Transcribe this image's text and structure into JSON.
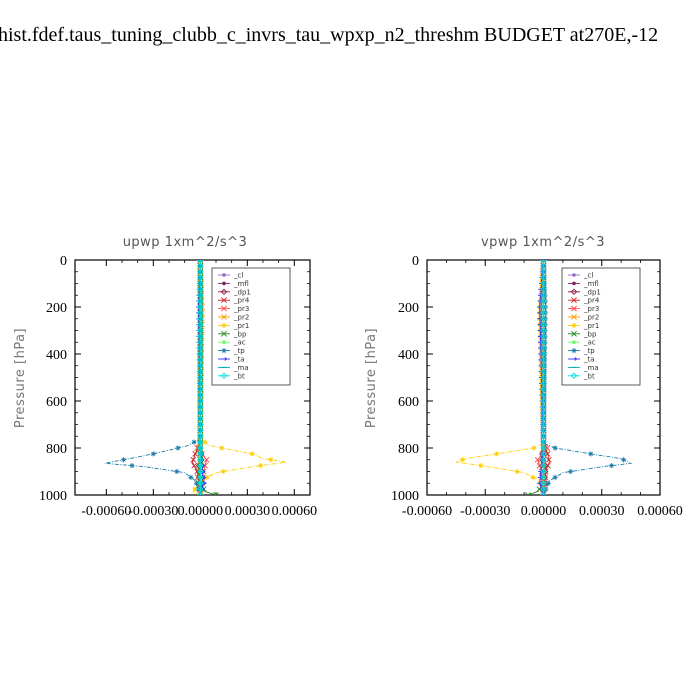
{
  "figure_title": "hist.fdef.taus_tuning_clubb_c_invrs_tau_wpxp_n2_threshm  BUDGET at270E,-12",
  "chart_data": [
    {
      "type": "line",
      "title": "upwp   1xm^2/s^3",
      "ylabel": "Pressure [hPa]",
      "xlim": [
        -0.0008,
        0.0007
      ],
      "ylim": [
        1000,
        0
      ],
      "y_ticks": [
        0,
        200,
        400,
        600,
        800,
        1000
      ],
      "x_ticks": [
        -0.0006,
        -0.0003,
        0.0,
        0.0003,
        0.0006
      ],
      "x_tick_labels": [
        "-0.00060",
        "-0.00030",
        "0.00000",
        "0.00030",
        "0.00060"
      ],
      "legend": "top-right",
      "series": [
        {
          "name": "_cl",
          "color": "#9966cc",
          "marker": "dot",
          "values": [
            [
              0,
              0
            ],
            [
              0,
              850
            ],
            [
              0,
              1000
            ]
          ]
        },
        {
          "name": "_mfl",
          "color": "#7a1f5c",
          "marker": "dot",
          "values": [
            [
              0,
              0
            ],
            [
              0,
              850
            ],
            [
              0,
              1000
            ]
          ]
        },
        {
          "name": "_dp1",
          "color": "#8b1a3a",
          "marker": "diamond",
          "values": [
            [
              0,
              0
            ],
            [
              0,
              800
            ],
            [
              1e-05,
              840
            ],
            [
              -1e-05,
              880
            ],
            [
              0,
              1000
            ]
          ]
        },
        {
          "name": "_pr4",
          "color": "#cc2222",
          "marker": "x",
          "values": [
            [
              0,
              0
            ],
            [
              0,
              790
            ],
            [
              -3e-05,
              820
            ],
            [
              -5e-05,
              860
            ],
            [
              -2e-05,
              900
            ],
            [
              0,
              1000
            ]
          ]
        },
        {
          "name": "_pr3",
          "color": "#ff4444",
          "marker": "x",
          "values": [
            [
              0,
              0
            ],
            [
              0,
              780
            ],
            [
              -2e-05,
              800
            ],
            [
              4e-05,
              850
            ],
            [
              2e-05,
              900
            ],
            [
              0,
              1000
            ]
          ]
        },
        {
          "name": "_pr2",
          "color": "#ff9900",
          "marker": "x",
          "values": [
            [
              0,
              0
            ],
            [
              1e-05,
              200
            ],
            [
              0,
              780
            ],
            [
              0,
              1000
            ]
          ]
        },
        {
          "name": "_pr1",
          "color": "#ffcc00",
          "marker": "star",
          "values": [
            [
              0,
              0
            ],
            [
              0,
              760
            ],
            [
              6e-05,
              790
            ],
            [
              0.00033,
              825
            ],
            [
              0.0004,
              845
            ],
            [
              0.00055,
              860
            ],
            [
              0.00033,
              880
            ],
            [
              0.0001,
              905
            ],
            [
              0,
              940
            ],
            [
              -5e-05,
              990
            ],
            [
              0,
              1000
            ]
          ]
        },
        {
          "name": "_bp",
          "color": "#228b22",
          "marker": "x",
          "values": [
            [
              0,
              0
            ],
            [
              0,
              950
            ],
            [
              3e-05,
              985
            ],
            [
              0.0001,
              1000
            ]
          ]
        },
        {
          "name": "_ac",
          "color": "#66ff66",
          "marker": "dot",
          "values": [
            [
              0,
              0
            ],
            [
              0,
              1000
            ]
          ]
        },
        {
          "name": "_tp",
          "color": "#1a7aaa",
          "marker": "star",
          "values": [
            [
              0,
              0
            ],
            [
              0,
              760
            ],
            [
              -8e-05,
              790
            ],
            [
              -0.0003,
              825
            ],
            [
              -0.00045,
              845
            ],
            [
              -0.00061,
              865
            ],
            [
              -0.00035,
              880
            ],
            [
              -0.0001,
              905
            ],
            [
              -3e-05,
              940
            ],
            [
              0,
              1000
            ]
          ]
        },
        {
          "name": "_ta",
          "color": "#3333ff",
          "marker": "arrow",
          "values": [
            [
              0,
              0
            ],
            [
              -1e-05,
              200
            ],
            [
              0,
              800
            ],
            [
              2e-05,
              950
            ],
            [
              0,
              1000
            ]
          ]
        },
        {
          "name": "_ma",
          "color": "#00aaaa",
          "marker": "dash",
          "values": [
            [
              0,
              0
            ],
            [
              0,
              1000
            ]
          ]
        },
        {
          "name": "_bt",
          "color": "#00dddd",
          "marker": "diamond",
          "values": [
            [
              0,
              0
            ],
            [
              0,
              1000
            ]
          ]
        }
      ]
    },
    {
      "type": "line",
      "title": "vpwp   1xm^2/s^3",
      "ylabel": "Pressure [hPa]",
      "xlim": [
        -0.0006,
        0.0006
      ],
      "ylim": [
        1000,
        0
      ],
      "y_ticks": [
        0,
        200,
        400,
        600,
        800,
        1000
      ],
      "x_ticks": [
        -0.0006,
        -0.0003,
        0.0,
        0.0003,
        0.0006
      ],
      "x_tick_labels": [
        "-0.00060",
        "-0.00030",
        "0.00000",
        "0.00030",
        "0.00060"
      ],
      "legend": "top-right",
      "series": [
        {
          "name": "_cl",
          "color": "#9966cc",
          "marker": "dot",
          "values": [
            [
              0,
              0
            ],
            [
              0,
              850
            ],
            [
              0,
              1000
            ]
          ]
        },
        {
          "name": "_mfl",
          "color": "#7a1f5c",
          "marker": "dot",
          "values": [
            [
              0,
              0
            ],
            [
              0,
              850
            ],
            [
              0,
              1000
            ]
          ]
        },
        {
          "name": "_dp1",
          "color": "#8b1a3a",
          "marker": "diamond",
          "values": [
            [
              0,
              0
            ],
            [
              0,
              800
            ],
            [
              -1e-05,
              840
            ],
            [
              1e-05,
              880
            ],
            [
              0,
              1000
            ]
          ]
        },
        {
          "name": "_pr4",
          "color": "#cc2222",
          "marker": "x",
          "values": [
            [
              0,
              0
            ],
            [
              0,
              790
            ],
            [
              2e-05,
              820
            ],
            [
              3e-05,
              860
            ],
            [
              1e-05,
              900
            ],
            [
              0,
              1000
            ]
          ]
        },
        {
          "name": "_pr3",
          "color": "#ff4444",
          "marker": "x",
          "values": [
            [
              0,
              0
            ],
            [
              0,
              780
            ],
            [
              2e-05,
              800
            ],
            [
              -3e-05,
              850
            ],
            [
              -1e-05,
              900
            ],
            [
              0,
              1000
            ]
          ]
        },
        {
          "name": "_pr2",
          "color": "#ff9900",
          "marker": "x",
          "values": [
            [
              0,
              0
            ],
            [
              -1e-05,
              200
            ],
            [
              0,
              780
            ],
            [
              0,
              1000
            ]
          ]
        },
        {
          "name": "_pr1",
          "color": "#ffcc00",
          "marker": "star",
          "values": [
            [
              0,
              0
            ],
            [
              -2e-05,
              230
            ],
            [
              0,
              780
            ],
            [
              -5e-05,
              800
            ],
            [
              -0.00028,
              830
            ],
            [
              -0.0004,
              845
            ],
            [
              -0.00045,
              860
            ],
            [
              -0.00028,
              880
            ],
            [
              -0.0001,
              905
            ],
            [
              -2e-05,
              940
            ],
            [
              0,
              1000
            ]
          ]
        },
        {
          "name": "_bp",
          "color": "#228b22",
          "marker": "x",
          "values": [
            [
              0,
              0
            ],
            [
              0,
              950
            ],
            [
              -3e-05,
              985
            ],
            [
              -8e-05,
              1000
            ]
          ]
        },
        {
          "name": "_ac",
          "color": "#66ff66",
          "marker": "dot",
          "values": [
            [
              0,
              0
            ],
            [
              0,
              1000
            ]
          ]
        },
        {
          "name": "_tp",
          "color": "#1a7aaa",
          "marker": "star",
          "values": [
            [
              0,
              0
            ],
            [
              1e-05,
              200
            ],
            [
              0,
              780
            ],
            [
              6e-05,
              800
            ],
            [
              0.00028,
              830
            ],
            [
              0.0004,
              845
            ],
            [
              0.00045,
              865
            ],
            [
              0.0003,
              880
            ],
            [
              0.0001,
              905
            ],
            [
              3e-05,
              940
            ],
            [
              0,
              1000
            ]
          ]
        },
        {
          "name": "_ta",
          "color": "#3333ff",
          "marker": "arrow",
          "values": [
            [
              0,
              0
            ],
            [
              -2e-05,
              200
            ],
            [
              0,
              800
            ],
            [
              -2e-05,
              950
            ],
            [
              0,
              1000
            ]
          ]
        },
        {
          "name": "_ma",
          "color": "#00aaaa",
          "marker": "dash",
          "values": [
            [
              0,
              0
            ],
            [
              0,
              1000
            ]
          ]
        },
        {
          "name": "_bt",
          "color": "#00dddd",
          "marker": "diamond",
          "values": [
            [
              0,
              0
            ],
            [
              0,
              1000
            ]
          ]
        }
      ]
    }
  ]
}
